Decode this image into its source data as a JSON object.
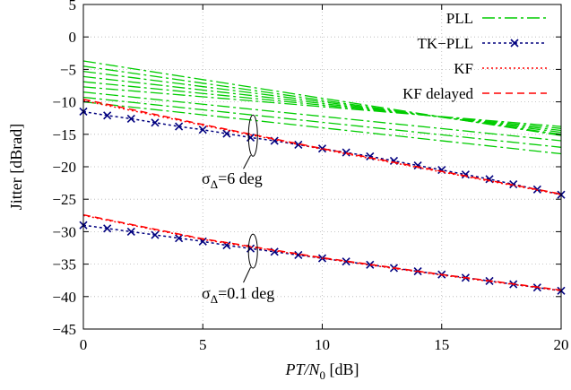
{
  "chart_data": {
    "type": "line",
    "title": "",
    "xlabel": {
      "main": "PT/N",
      "sub": "0",
      "unit": " [dB]"
    },
    "ylabel": "Jitter [dBrad]",
    "xlim": [
      0,
      20
    ],
    "ylim": [
      -45,
      5
    ],
    "xticks": [
      0,
      5,
      10,
      15,
      20
    ],
    "yticks": [
      5,
      0,
      -5,
      -10,
      -15,
      -20,
      -25,
      -30,
      -35,
      -40,
      -45
    ],
    "grid": true,
    "legend_position": "top-right",
    "legend": [
      {
        "label": "PLL",
        "color": "#00cc00",
        "style": "dash-dot"
      },
      {
        "label": "TK−PLL",
        "color": "#00007f",
        "style": "dotted-x"
      },
      {
        "label": "KF",
        "color": "#ff0000",
        "style": "dotted"
      },
      {
        "label": "KF delayed",
        "color": "#ff0000",
        "style": "dashed"
      }
    ],
    "annotations": [
      {
        "prefix": "σ",
        "sub": "Δ",
        "suffix": "=6 deg"
      },
      {
        "prefix": "σ",
        "sub": "Δ",
        "suffix": "=0.1 deg"
      }
    ],
    "series": [
      {
        "name": "PLL",
        "group": "sigma_6deg",
        "x": [
          0,
          20
        ],
        "y": [
          -3.7,
          -15.2
        ]
      },
      {
        "name": "PLL",
        "group": "sigma_6deg",
        "x": [
          0,
          20
        ],
        "y": [
          -4.5,
          -15.0
        ]
      },
      {
        "name": "PLL",
        "group": "sigma_6deg",
        "x": [
          0,
          20
        ],
        "y": [
          -5.3,
          -14.7
        ]
      },
      {
        "name": "PLL",
        "group": "sigma_6deg",
        "x": [
          0,
          20
        ],
        "y": [
          -6.1,
          -14.4
        ]
      },
      {
        "name": "PLL",
        "group": "sigma_6deg",
        "x": [
          0,
          20
        ],
        "y": [
          -6.9,
          -14.1
        ]
      },
      {
        "name": "PLL",
        "group": "sigma_6deg",
        "x": [
          0,
          20
        ],
        "y": [
          -7.7,
          -13.8
        ]
      },
      {
        "name": "PLL",
        "group": "sigma_6deg",
        "x": [
          0,
          20
        ],
        "y": [
          -8.5,
          -16.0
        ]
      },
      {
        "name": "PLL",
        "group": "sigma_6deg",
        "x": [
          0,
          20
        ],
        "y": [
          -9.3,
          -17.0
        ]
      },
      {
        "name": "PLL",
        "group": "sigma_6deg",
        "x": [
          0,
          20
        ],
        "y": [
          -10.0,
          -18.0
        ]
      },
      {
        "name": "TK−PLL",
        "group": "sigma_6deg",
        "x": [
          0,
          1,
          2,
          3,
          4,
          5,
          6,
          7,
          8,
          9,
          10,
          11,
          12,
          13,
          14,
          15,
          16,
          17,
          18,
          19,
          20
        ],
        "y": [
          -11.5,
          -12.1,
          -12.6,
          -13.2,
          -13.8,
          -14.3,
          -14.9,
          -15.5,
          -16.0,
          -16.6,
          -17.2,
          -17.8,
          -18.4,
          -19.1,
          -19.8,
          -20.5,
          -21.2,
          -21.9,
          -22.7,
          -23.5,
          -24.3
        ]
      },
      {
        "name": "KF",
        "group": "sigma_6deg",
        "x": [
          0,
          5,
          10,
          15,
          20
        ],
        "y": [
          -9.8,
          -13.6,
          -17.3,
          -20.8,
          -24.3
        ]
      },
      {
        "name": "KF delayed",
        "group": "sigma_6deg",
        "x": [
          0,
          5,
          10,
          15,
          20
        ],
        "y": [
          -9.6,
          -13.5,
          -17.2,
          -20.7,
          -24.2
        ]
      },
      {
        "name": "TK−PLL",
        "group": "sigma_0.1deg",
        "x": [
          0,
          1,
          2,
          3,
          4,
          5,
          6,
          7,
          8,
          9,
          10,
          11,
          12,
          13,
          14,
          15,
          16,
          17,
          18,
          19,
          20
        ],
        "y": [
          -29.0,
          -29.5,
          -30.0,
          -30.5,
          -31.0,
          -31.5,
          -32.1,
          -32.6,
          -33.1,
          -33.6,
          -34.1,
          -34.6,
          -35.1,
          -35.6,
          -36.1,
          -36.6,
          -37.1,
          -37.6,
          -38.1,
          -38.6,
          -39.1
        ]
      },
      {
        "name": "KF",
        "group": "sigma_0.1deg",
        "x": [
          0,
          5,
          10,
          15,
          20
        ],
        "y": [
          -27.5,
          -31.2,
          -34.1,
          -36.7,
          -39.1
        ]
      },
      {
        "name": "KF delayed",
        "group": "sigma_0.1deg",
        "x": [
          0,
          5,
          10,
          15,
          20
        ],
        "y": [
          -27.4,
          -31.1,
          -34.0,
          -36.6,
          -39.0
        ]
      }
    ]
  }
}
